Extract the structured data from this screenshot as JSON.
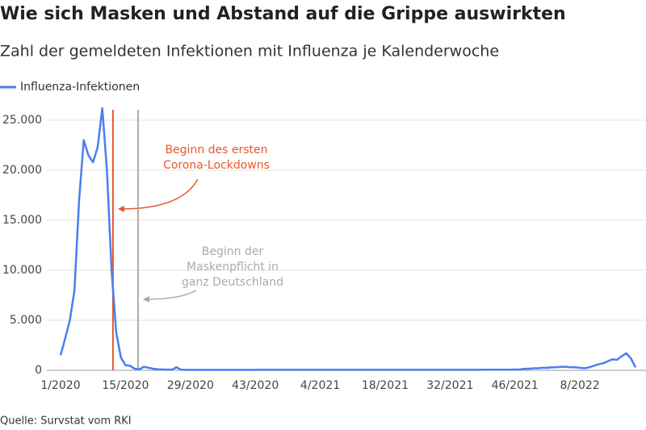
{
  "chart_data": {
    "type": "line",
    "title": "Wie sich Masken und Abstand auf die Grippe auswirkten",
    "subtitle": "Zahl der gemeldeten Infektionen mit Influenza je Kalenderwoche",
    "source": "Quelle: Survstat vom RKI",
    "categories": [
      "1/2020",
      null,
      null,
      null,
      null,
      null,
      null,
      null,
      null,
      null,
      null,
      null,
      null,
      null,
      "15/2020",
      null,
      null,
      null,
      null,
      null,
      null,
      null,
      null,
      null,
      null,
      null,
      null,
      null,
      "29/2020",
      null,
      null,
      null,
      null,
      null,
      null,
      null,
      null,
      null,
      null,
      null,
      null,
      null,
      "43/2020",
      null,
      null,
      null,
      null,
      null,
      null,
      null,
      null,
      null,
      null,
      null,
      null,
      null,
      "4/2021",
      null,
      null,
      null,
      null,
      null,
      null,
      null,
      null,
      null,
      null,
      null,
      null,
      null,
      "18/2021",
      null,
      null,
      null,
      null,
      null,
      null,
      null,
      null,
      null,
      null,
      null,
      null,
      null,
      "32/2021",
      null,
      null,
      null,
      null,
      null,
      null,
      null,
      null,
      null,
      null,
      null,
      null,
      null,
      "46/2021",
      null,
      null,
      null,
      null,
      null,
      null,
      null,
      null,
      null,
      null,
      null,
      null,
      null,
      "8/2022",
      null,
      null,
      null,
      null,
      null,
      null,
      null,
      null,
      null,
      null,
      null,
      null
    ],
    "series": [
      {
        "name": "Influenza-Infektionen",
        "color": "#4a7ef0",
        "values": [
          1500,
          3200,
          5000,
          8000,
          17000,
          23000,
          21500,
          20800,
          22300,
          26200,
          20000,
          10000,
          3800,
          1300,
          500,
          450,
          150,
          100,
          350,
          250,
          150,
          100,
          80,
          70,
          60,
          300,
          60,
          40,
          40,
          40,
          40,
          40,
          40,
          40,
          40,
          40,
          40,
          40,
          40,
          40,
          40,
          40,
          40,
          50,
          50,
          50,
          50,
          50,
          50,
          50,
          50,
          50,
          50,
          50,
          50,
          50,
          50,
          50,
          50,
          50,
          50,
          50,
          50,
          50,
          50,
          50,
          50,
          50,
          50,
          50,
          50,
          50,
          50,
          50,
          50,
          50,
          50,
          50,
          50,
          50,
          50,
          50,
          50,
          50,
          50,
          50,
          50,
          50,
          50,
          50,
          50,
          60,
          60,
          60,
          60,
          60,
          60,
          60,
          80,
          80,
          150,
          150,
          200,
          200,
          250,
          250,
          300,
          300,
          350,
          350,
          300,
          300,
          250,
          200,
          300,
          450,
          600,
          700,
          900,
          1100,
          1050,
          1400,
          1700,
          1200,
          300
        ]
      }
    ],
    "ylim": [
      0,
      26500
    ],
    "yticks": [
      0,
      {
        "value": 5000,
        "label": "5.000"
      },
      {
        "value": 10000,
        "label": "10.000"
      },
      {
        "value": 15000,
        "label": "15.000"
      },
      {
        "value": 20000,
        "label": "20.000"
      },
      {
        "value": 25000,
        "label": "25.000"
      }
    ],
    "grid": true,
    "annotations": [
      {
        "lines": [
          "Beginn des ersten",
          "Corona-Lockdowns"
        ],
        "x": 11.3,
        "color": "#e8572a"
      },
      {
        "lines": [
          "Beginn der",
          "Maskenpflicht in",
          "ganz Deutschland"
        ],
        "x": 16.7,
        "color": "#aaaaaa"
      }
    ]
  }
}
